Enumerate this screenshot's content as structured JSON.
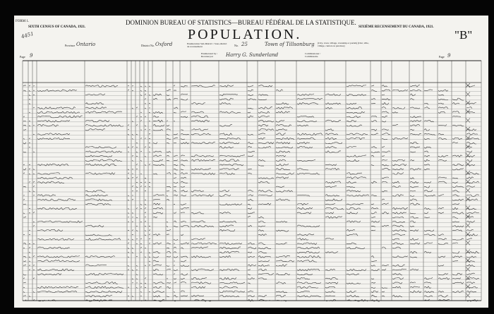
{
  "header": {
    "form": "FORM 1.",
    "census_en": "SIXTH CENSUS OF CANADA, 1921.",
    "census_fr": "SIXIÈME RECENSEMENT DU CANADA, 1921.",
    "bureau": "DOMINION BUREAU OF STATISTICS—BUREAU FÉDÉRAL DE LA STATISTIQUE.",
    "title": "POPULATION.",
    "schedule": "\"B\"",
    "province_label": "Province",
    "province_value": "Ontario",
    "district_label": "District No.",
    "district_value": "Oxford",
    "subdistrict_label": "Enumeration Sub-District / Sous-district de recensement",
    "subdistrict_no_label": "No.",
    "subdistrict_no_value": "25",
    "place_value": "Town of Tillsonburg",
    "place_note": "(City, town, village, township or parish) (Cité, ville, village, canton ou paroisse)",
    "enumerated_label": "Enumerated by / Recensé par",
    "enumerator_value": "Harry G. Sunderland",
    "commissioner_label": "Commissioner / Commissaire",
    "page_left_label": "Page",
    "page_left_value": "9",
    "page_right_label": "Page",
    "page_right_value": "9",
    "margin_note": "4451"
  }
}
